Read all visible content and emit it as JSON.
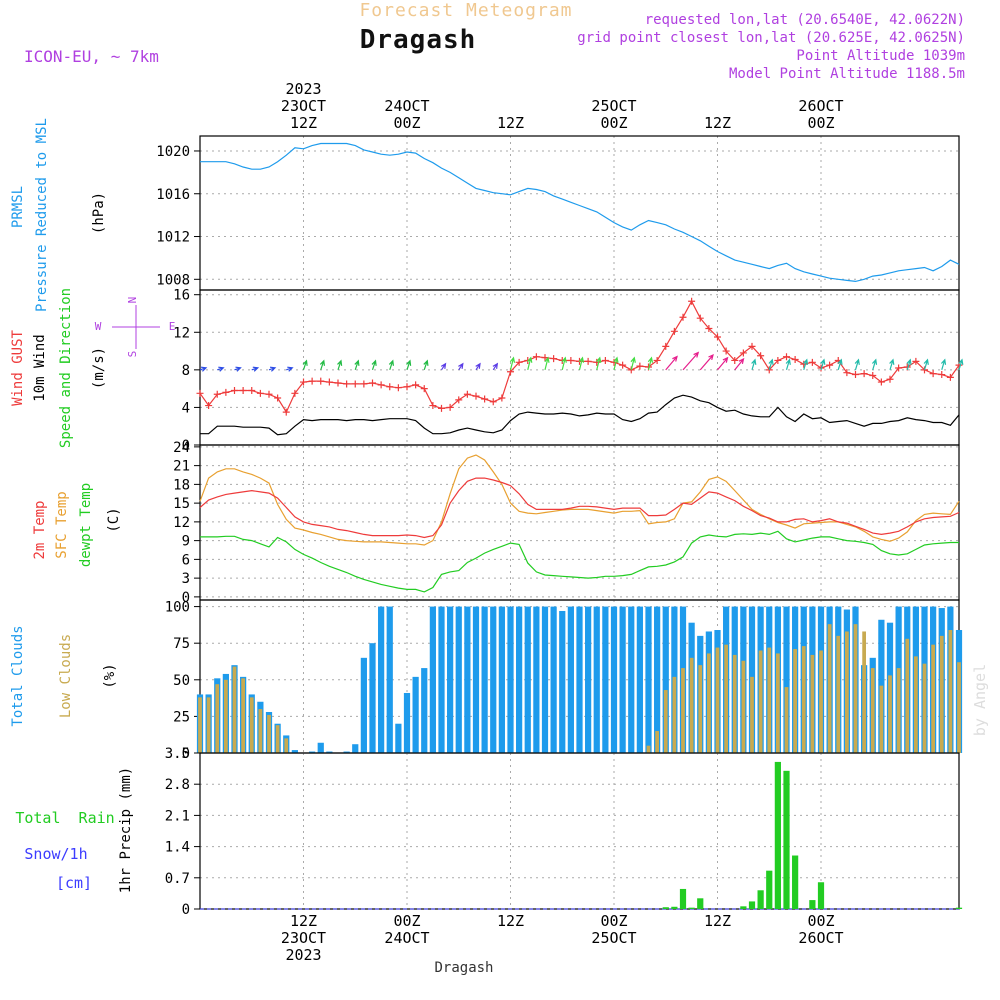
{
  "header": {
    "top_title": "Forecast Meteogram",
    "location": "Dragash",
    "model": "ICON-EU, ~ 7km",
    "requested": "requested lon,lat (20.6540E, 42.0622N)",
    "grid_point": "grid point closest lon,lat (20.625E, 42.0625N)",
    "point_altitude": "Point Altitude 1039m",
    "model_point_altitude": "Model Point Altitude 1188.5m",
    "watermark": "by Angel",
    "footer_location": "Dragash"
  },
  "time_axis": {
    "top_labels": [
      {
        "h": 12,
        "lines": [
          "2023",
          "23OCT",
          "12Z"
        ]
      },
      {
        "h": 24,
        "lines": [
          "24OCT",
          "00Z"
        ]
      },
      {
        "h": 36,
        "lines": [
          "12Z"
        ]
      },
      {
        "h": 48,
        "lines": [
          "25OCT",
          "00Z"
        ]
      },
      {
        "h": 60,
        "lines": [
          "12Z"
        ]
      },
      {
        "h": 72,
        "lines": [
          "26OCT",
          "00Z"
        ]
      }
    ],
    "bottom_labels": [
      {
        "h": 12,
        "lines": [
          "12Z",
          "23OCT",
          "2023"
        ]
      },
      {
        "h": 24,
        "lines": [
          "00Z",
          "24OCT"
        ]
      },
      {
        "h": 36,
        "lines": [
          "12Z"
        ]
      },
      {
        "h": 48,
        "lines": [
          "00Z",
          "25OCT"
        ]
      },
      {
        "h": 60,
        "lines": [
          "12Z"
        ]
      },
      {
        "h": 72,
        "lines": [
          "00Z",
          "26OCT"
        ]
      }
    ]
  },
  "panels": {
    "pressure": {
      "labels": [
        "PRMSL",
        "Pressure Reduced to MSL"
      ],
      "unit": "(hPa)",
      "ticks": [
        "1008",
        "1012",
        "1016",
        "1020"
      ]
    },
    "wind": {
      "labels": [
        "Wind GUST",
        "10m Wind",
        "Speed and Direction"
      ],
      "unit": "(m/s)",
      "ticks": [
        "0",
        "4",
        "8",
        "12",
        "16"
      ],
      "compass": {
        "n": "N",
        "w": "W",
        "e": "E",
        "s": "S"
      }
    },
    "temp": {
      "labels": [
        "2m Temp",
        "SFC Temp",
        "dewpt Temp"
      ],
      "unit": "(C)",
      "ticks": [
        "0",
        "3",
        "6",
        "9",
        "12",
        "15",
        "18",
        "21",
        "24"
      ]
    },
    "clouds": {
      "labels": [
        "Total Clouds",
        "Low Clouds"
      ],
      "unit": "(%)",
      "ticks": [
        "0",
        "25",
        "50",
        "75",
        "100"
      ]
    },
    "precip": {
      "labels": [
        "Total  Rain",
        "Snow/1h",
        "[cm]"
      ],
      "axis_label": "1hr Precip (mm)",
      "ticks": [
        "0",
        "0.7",
        "1.4",
        "2.1",
        "2.8",
        "3.5"
      ]
    }
  },
  "colors": {
    "pressure": "#1e9bec",
    "gust": "#ee3b3b",
    "wind": "#000000",
    "temp2m": "#ee3b3b",
    "sfc": "#e8a030",
    "dewpt": "#22cc22",
    "total_cloud": "#1e9bec",
    "low_cloud": "#c8aa50",
    "rain": "#22cc22",
    "snow": "#3c3cff",
    "header_purple": "#b040e0",
    "title_orange": "#f0c890"
  },
  "chart_data": [
    {
      "type": "line",
      "series": [
        {
          "name": "PRMSL",
          "y": [
            1019,
            1019,
            1019,
            1019,
            1018.8,
            1018.5,
            1018.3,
            1018.3,
            1018.5,
            1019,
            1019.6,
            1020.3,
            1020.2,
            1020.5,
            1020.7,
            1020.7,
            1020.7,
            1020.7,
            1020.5,
            1020.1,
            1019.9,
            1019.7,
            1019.6,
            1019.7,
            1019.9,
            1019.8,
            1019.3,
            1018.9,
            1018.4,
            1018,
            1017.5,
            1017.0,
            1016.5,
            1016.3,
            1016.1,
            1016.0,
            1015.9,
            1016.2,
            1016.5,
            1016.4,
            1016.2,
            1015.8,
            1015.5,
            1015.2,
            1014.9,
            1014.6,
            1014.3,
            1013.8,
            1013.3,
            1012.9,
            1012.6,
            1013.1,
            1013.5,
            1013.3,
            1013.1,
            1012.7,
            1012.4,
            1012,
            1011.6,
            1011.1,
            1010.6,
            1010.2,
            1009.8,
            1009.6,
            1009.4,
            1009.2,
            1009.0,
            1009.3,
            1009.5,
            1009.0,
            1008.7,
            1008.5,
            1008.3,
            1008.1,
            1008.0,
            1007.9,
            1007.8,
            1008.0,
            1008.3,
            1008.4,
            1008.6,
            1008.8,
            1008.9,
            1009.0,
            1009.1,
            1008.8,
            1009.2,
            1009.8,
            1009.4
          ]
        }
      ],
      "ylim": [
        1007,
        1021.4
      ],
      "ylabel": "(hPa)"
    },
    {
      "type": "line",
      "series": [
        {
          "name": "Wind GUST",
          "y": [
            5.5,
            4.2,
            5.4,
            5.6,
            5.8,
            5.8,
            5.8,
            5.5,
            5.4,
            5.0,
            3.5,
            5.5,
            6.7,
            6.8,
            6.8,
            6.7,
            6.6,
            6.5,
            6.5,
            6.5,
            6.6,
            6.4,
            6.2,
            6.1,
            6.2,
            6.4,
            6.0,
            4.2,
            3.9,
            4.0,
            4.8,
            5.4,
            5.2,
            4.9,
            4.6,
            5.0,
            7.8,
            8.8,
            9.0,
            9.4,
            9.3,
            9.2,
            9.0,
            9.0,
            8.9,
            8.9,
            8.8,
            9.0,
            8.8,
            8.5,
            8.0,
            8.4,
            8.3,
            9.0,
            10.5,
            12.1,
            13.6,
            15.3,
            13.5,
            12.4,
            11.5,
            10.0,
            9.0,
            9.8,
            10.5,
            9.5,
            8.0,
            9.0,
            9.4,
            9.1,
            8.6,
            8.8,
            8.2,
            8.5,
            9.0,
            7.7,
            7.5,
            7.6,
            7.4,
            6.7,
            7.0,
            8.2,
            8.3,
            8.9,
            8.0,
            7.6,
            7.5,
            7.2,
            8.5
          ]
        },
        {
          "name": "10m Wind",
          "y": [
            1.2,
            1.2,
            2.0,
            2.0,
            2.0,
            1.9,
            1.9,
            1.9,
            1.8,
            1.1,
            1.2,
            2.0,
            2.7,
            2.6,
            2.7,
            2.7,
            2.7,
            2.6,
            2.7,
            2.7,
            2.6,
            2.7,
            2.8,
            2.8,
            2.8,
            2.6,
            1.8,
            1.2,
            1.2,
            1.3,
            1.6,
            1.8,
            1.6,
            1.4,
            1.3,
            1.6,
            2.6,
            3.3,
            3.5,
            3.4,
            3.3,
            3.3,
            3.4,
            3.3,
            3.1,
            3.2,
            3.4,
            3.3,
            3.3,
            2.7,
            2.5,
            2.8,
            3.4,
            3.5,
            4.3,
            5.0,
            5.3,
            5.1,
            4.7,
            4.5,
            4.0,
            3.6,
            3.7,
            3.3,
            3.1,
            3.0,
            3.0,
            4.0,
            3.0,
            2.5,
            3.3,
            2.8,
            2.9,
            2.4,
            2.5,
            2.6,
            2.3,
            2.0,
            2.3,
            2.3,
            2.5,
            2.6,
            2.9,
            2.7,
            2.6,
            2.4,
            2.4,
            2.1,
            3.2
          ]
        }
      ],
      "ylim": [
        0,
        16.5
      ],
      "ylabel": "(m/s)"
    },
    {
      "type": "line",
      "series": [
        {
          "name": "2m Temp",
          "y": [
            14.3,
            15.5,
            16.0,
            16.4,
            16.6,
            16.8,
            17.0,
            16.8,
            16.6,
            15.8,
            14.3,
            12.8,
            12.0,
            11.6,
            11.4,
            11.2,
            10.8,
            10.6,
            10.3,
            10.0,
            9.8,
            9.8,
            9.8,
            9.8,
            9.9,
            9.8,
            9.5,
            9.8,
            11.5,
            15.0,
            17.0,
            18.5,
            19.0,
            19.0,
            18.7,
            18.3,
            17.8,
            16.5,
            14.8,
            14.0,
            14.0,
            14.0,
            14.0,
            14.2,
            14.5,
            14.5,
            14.4,
            14.2,
            14.0,
            14.2,
            14.2,
            14.2,
            13.0,
            13.0,
            13.1,
            14.0,
            15.0,
            14.8,
            15.8,
            16.8,
            16.6,
            16.0,
            15.4,
            14.5,
            13.8,
            13.0,
            12.6,
            12.0,
            12.0,
            12.4,
            12.5,
            12.0,
            12.2,
            12.5,
            12.0,
            11.8,
            11.3,
            10.8,
            10.2,
            10.0,
            10.2,
            10.5,
            11.2,
            12.0,
            12.5,
            12.7,
            12.8,
            12.9,
            13.5
          ]
        },
        {
          "name": "SFC Temp",
          "y": [
            15.3,
            19.0,
            20.0,
            20.5,
            20.5,
            20.0,
            19.6,
            19.0,
            18.2,
            14.8,
            12.4,
            11.0,
            10.7,
            10.3,
            10.0,
            9.6,
            9.2,
            9.0,
            8.9,
            8.8,
            8.8,
            8.8,
            8.7,
            8.6,
            8.5,
            8.5,
            8.3,
            9.0,
            12.0,
            16.5,
            20.5,
            22.2,
            22.7,
            21.9,
            20.0,
            18.0,
            15.0,
            13.7,
            13.4,
            13.3,
            13.5,
            13.7,
            13.9,
            14.0,
            14.0,
            14.0,
            13.8,
            13.6,
            13.4,
            13.7,
            13.7,
            13.8,
            11.7,
            11.9,
            12.0,
            12.5,
            15.0,
            15.2,
            16.8,
            18.8,
            19.2,
            18.5,
            17.0,
            15.5,
            14.0,
            13.2,
            12.5,
            11.9,
            11.5,
            11.0,
            11.7,
            11.8,
            11.9,
            12.0,
            12.0,
            11.6,
            11.2,
            10.5,
            9.6,
            9.2,
            8.9,
            9.4,
            10.4,
            12.2,
            13.2,
            13.4,
            13.3,
            13.2,
            15.3
          ]
        },
        {
          "name": "dewpt Temp",
          "y": [
            9.6,
            9.6,
            9.6,
            9.7,
            9.7,
            9.2,
            9.0,
            8.5,
            8.0,
            9.5,
            8.8,
            7.6,
            6.8,
            6.2,
            5.5,
            4.9,
            4.4,
            3.9,
            3.3,
            2.8,
            2.4,
            2.0,
            1.7,
            1.4,
            1.2,
            1.2,
            0.8,
            1.5,
            3.6,
            4.0,
            4.2,
            5.5,
            6.2,
            7.0,
            7.6,
            8.1,
            8.6,
            8.4,
            5.4,
            4.0,
            3.5,
            3.4,
            3.3,
            3.2,
            3.1,
            3.0,
            3.1,
            3.3,
            3.3,
            3.4,
            3.6,
            4.2,
            4.8,
            4.9,
            5.1,
            5.6,
            6.4,
            8.6,
            9.6,
            9.9,
            9.7,
            9.6,
            10.0,
            10.1,
            10.0,
            10.2,
            10.0,
            10.5,
            9.3,
            8.8,
            9.1,
            9.4,
            9.6,
            9.6,
            9.3,
            9.0,
            8.9,
            8.7,
            8.4,
            7.4,
            6.9,
            6.7,
            6.9,
            7.6,
            8.3,
            8.5,
            8.6,
            8.7,
            8.7
          ]
        }
      ],
      "ylim": [
        -0.5,
        24.3
      ],
      "ylabel": "(C)"
    },
    {
      "type": "bar",
      "series": [
        {
          "name": "Total Clouds",
          "values": [
            40,
            40,
            51,
            54,
            60,
            52,
            40,
            35,
            28,
            20,
            12,
            2,
            0,
            1,
            7,
            1,
            0,
            1,
            6,
            65,
            75,
            100,
            100,
            20,
            41,
            52,
            58,
            100,
            100,
            100,
            100,
            100,
            100,
            100,
            100,
            100,
            100,
            100,
            100,
            100,
            100,
            100,
            97,
            100,
            100,
            100,
            100,
            100,
            100,
            100,
            100,
            100,
            100,
            100,
            100,
            100,
            100,
            89,
            80,
            83,
            84,
            100,
            100,
            100,
            100,
            100,
            100,
            100,
            100,
            100,
            100,
            100,
            100,
            100,
            100,
            98,
            100,
            60,
            65,
            91,
            89,
            100,
            100,
            100,
            100,
            100,
            99,
            100,
            84
          ]
        },
        {
          "name": "Low Clouds",
          "values": [
            38,
            38,
            47,
            50,
            59,
            51,
            38,
            30,
            26,
            19,
            10,
            0,
            0,
            0,
            0,
            0,
            0,
            0,
            0,
            0,
            0,
            0,
            0,
            0,
            0,
            0,
            0,
            0,
            0,
            0,
            0,
            0,
            0,
            0,
            0,
            0,
            0,
            0,
            0,
            0,
            0,
            0,
            0,
            0,
            0,
            0,
            0,
            0,
            0,
            0,
            0,
            0,
            5,
            15,
            43,
            52,
            58,
            65,
            60,
            68,
            72,
            74,
            67,
            63,
            52,
            70,
            72,
            68,
            45,
            71,
            73,
            67,
            70,
            88,
            80,
            83,
            88,
            83,
            58,
            46,
            53,
            58,
            78,
            66,
            61,
            74,
            80,
            84,
            62
          ]
        }
      ],
      "ylim": [
        0,
        104.5
      ],
      "ylabel": "(%)"
    },
    {
      "type": "bar",
      "series": [
        {
          "name": "Total Rain",
          "values": [
            0,
            0,
            0,
            0,
            0,
            0,
            0,
            0,
            0,
            0,
            0,
            0,
            0,
            0,
            0,
            0,
            0,
            0,
            0,
            0,
            0,
            0,
            0,
            0,
            0,
            0,
            0,
            0,
            0,
            0,
            0,
            0,
            0,
            0,
            0,
            0,
            0,
            0,
            0,
            0,
            0,
            0,
            0,
            0,
            0,
            0,
            0,
            0,
            0,
            0,
            0,
            0,
            0,
            0,
            0.04,
            0.05,
            0.45,
            0.03,
            0.24,
            0,
            0,
            0,
            0,
            0.06,
            0.17,
            0.42,
            0.86,
            3.3,
            3.1,
            1.2,
            0,
            0.2,
            0.6,
            0,
            0,
            0,
            0,
            0,
            0,
            0,
            0,
            0,
            0,
            0,
            0,
            0,
            0,
            0,
            0.03
          ]
        }
      ],
      "ylim": [
        0,
        3.5
      ],
      "ylabel": "1hr Precip (mm)"
    }
  ]
}
